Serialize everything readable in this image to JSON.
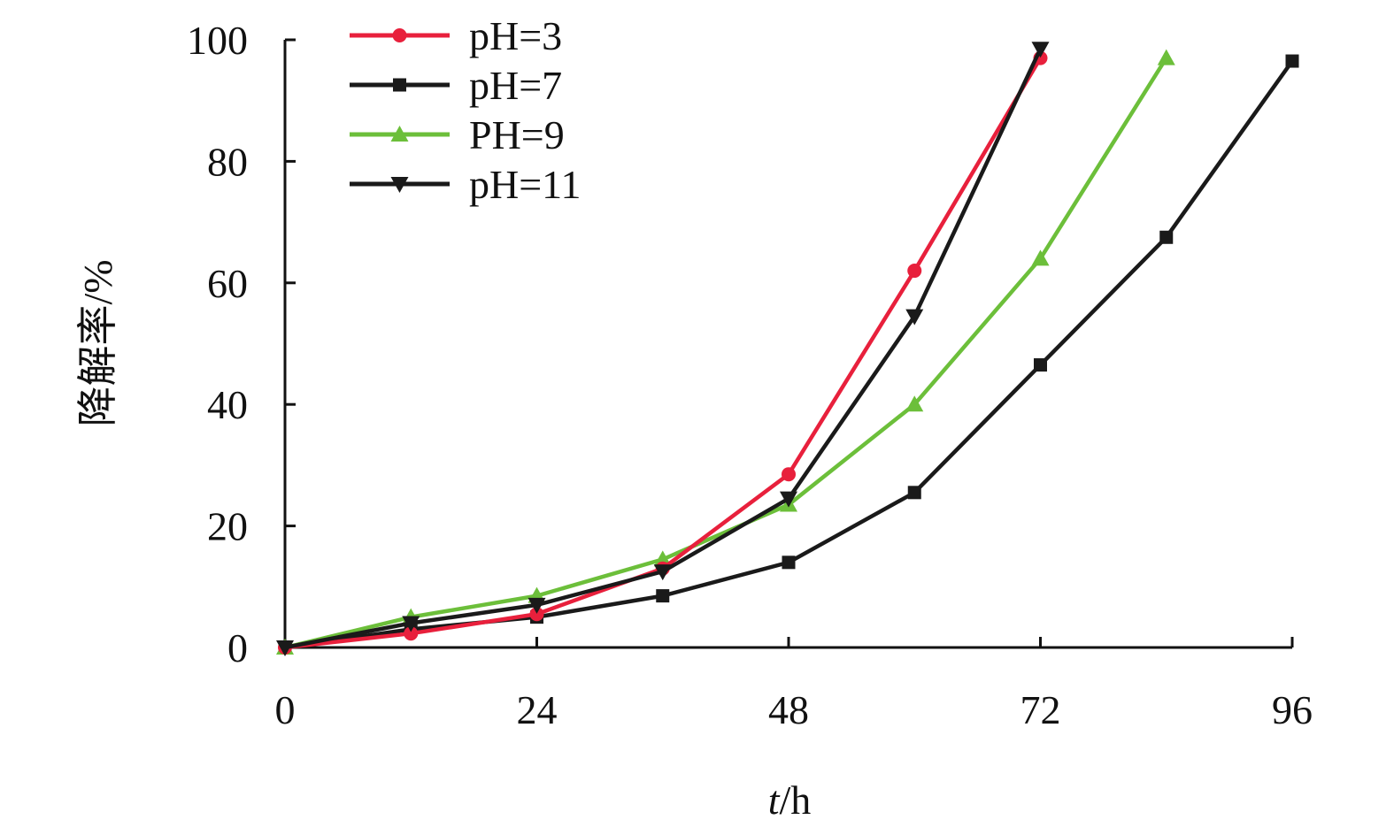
{
  "chart_data": {
    "type": "line",
    "xlabel_italic": "t",
    "xlabel_unit": "/h",
    "ylabel": "降解率/%",
    "xlim": [
      0,
      96
    ],
    "ylim": [
      0,
      100
    ],
    "x_ticks": [
      0,
      24,
      48,
      72,
      96
    ],
    "y_ticks": [
      0,
      20,
      40,
      60,
      80,
      100
    ],
    "grid": false,
    "legend_position": "top-left",
    "series": [
      {
        "name": "pH=3",
        "color": "#e8203c",
        "marker": "circle",
        "x": [
          0,
          12,
          24,
          36,
          48,
          60,
          72
        ],
        "y": [
          0,
          2.3,
          5.5,
          13,
          28.5,
          62,
          97
        ]
      },
      {
        "name": "pH=7",
        "color": "#1a1a1a",
        "marker": "square",
        "x": [
          0,
          12,
          24,
          36,
          48,
          60,
          72,
          84,
          96
        ],
        "y": [
          0,
          3,
          5,
          8.5,
          14,
          25.5,
          46.5,
          67.5,
          96.5
        ]
      },
      {
        "name": "PH=9",
        "color": "#6cbf3a",
        "marker": "triangle-up",
        "x": [
          0,
          12,
          24,
          36,
          48,
          60,
          72,
          84
        ],
        "y": [
          0,
          5,
          8.5,
          14.5,
          23.5,
          40,
          64,
          97
        ]
      },
      {
        "name": "pH=11",
        "color": "#1a1a1a",
        "marker": "triangle-down",
        "x": [
          0,
          12,
          24,
          36,
          48,
          60,
          72
        ],
        "y": [
          0,
          4,
          7,
          12.5,
          24.5,
          54.5,
          98.5
        ]
      }
    ]
  }
}
